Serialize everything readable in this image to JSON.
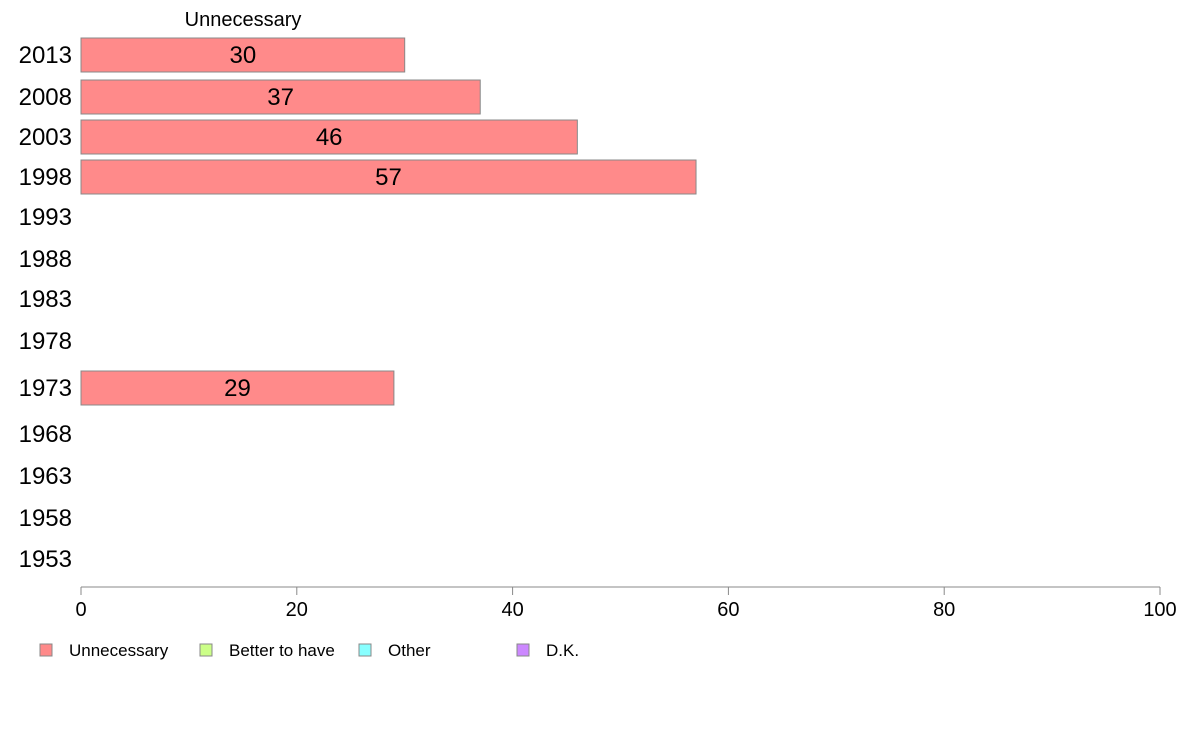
{
  "chart_data": {
    "type": "bar",
    "orientation": "horizontal",
    "header": "Unnecessary",
    "categories": [
      "2013",
      "2008",
      "2003",
      "1998",
      "1993",
      "1988",
      "1983",
      "1978",
      "1973",
      "1968",
      "1963",
      "1958",
      "1953"
    ],
    "series": [
      {
        "name": "Unnecessary",
        "values": [
          30,
          37,
          46,
          57,
          null,
          null,
          null,
          null,
          29,
          null,
          null,
          null,
          null
        ],
        "color": "#ff8a8a"
      },
      {
        "name": "Better to have",
        "values": [
          null,
          null,
          null,
          null,
          null,
          null,
          null,
          null,
          null,
          null,
          null,
          null,
          null
        ],
        "color": "#ccff88"
      },
      {
        "name": "Other",
        "values": [
          null,
          null,
          null,
          null,
          null,
          null,
          null,
          null,
          null,
          null,
          null,
          null,
          null
        ],
        "color": "#88ffff"
      },
      {
        "name": "D.K.",
        "values": [
          null,
          null,
          null,
          null,
          null,
          null,
          null,
          null,
          null,
          null,
          null,
          null,
          null
        ],
        "color": "#cc88ff"
      }
    ],
    "xlim": [
      0,
      100
    ],
    "xticks": [
      "0",
      "20",
      "40",
      "60",
      "80",
      "100"
    ],
    "grid": false,
    "legend_position": "bottom-left"
  }
}
